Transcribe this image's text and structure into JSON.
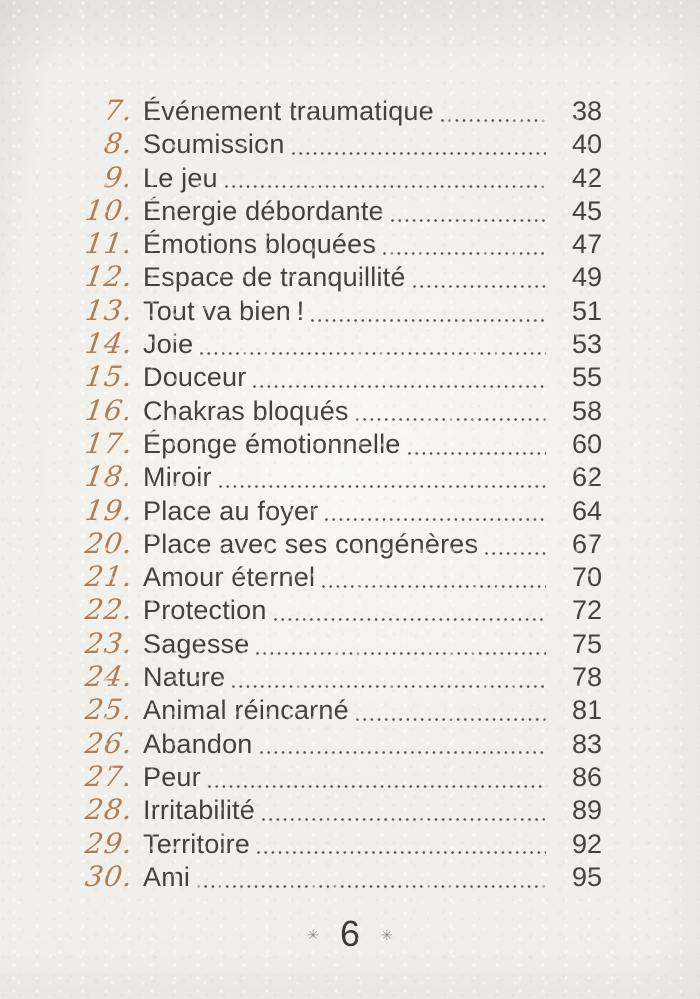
{
  "colors": {
    "paper": "#f1efe9",
    "entry_number_accent": "#ae7e56",
    "entry_text": "#45423e",
    "dot_leader": "#55524e",
    "footer_ornament": "#93908b",
    "footer_page_number": "#3e3b37"
  },
  "toc": {
    "entries": [
      {
        "number": "7.",
        "title": "Événement traumatique",
        "page": "38"
      },
      {
        "number": "8.",
        "title": "Soumission",
        "page": "40"
      },
      {
        "number": "9.",
        "title": "Le jeu",
        "page": "42"
      },
      {
        "number": "10.",
        "title": "Énergie débordante",
        "page": "45"
      },
      {
        "number": "11.",
        "title": "Émotions bloquées",
        "page": "47"
      },
      {
        "number": "12.",
        "title": "Espace de tranquillité",
        "page": "49"
      },
      {
        "number": "13.",
        "title": "Tout va bien !",
        "page": "51"
      },
      {
        "number": "14.",
        "title": "Joie",
        "page": "53"
      },
      {
        "number": "15.",
        "title": "Douceur",
        "page": "55"
      },
      {
        "number": "16.",
        "title": "Chakras bloqués",
        "page": "58"
      },
      {
        "number": "17.",
        "title": "Éponge émotionnelle",
        "page": "60"
      },
      {
        "number": "18.",
        "title": "Miroir",
        "page": "62"
      },
      {
        "number": "19.",
        "title": "Place au foyer",
        "page": "64"
      },
      {
        "number": "20.",
        "title": "Place avec ses congénères",
        "page": "67"
      },
      {
        "number": "21.",
        "title": "Amour éternel",
        "page": "70"
      },
      {
        "number": "22.",
        "title": "Protection",
        "page": "72"
      },
      {
        "number": "23.",
        "title": "Sagesse",
        "page": "75"
      },
      {
        "number": "24.",
        "title": "Nature",
        "page": "78"
      },
      {
        "number": "25.",
        "title": "Animal réincarné",
        "page": "81"
      },
      {
        "number": "26.",
        "title": "Abandon",
        "page": "83"
      },
      {
        "number": "27.",
        "title": "Peur",
        "page": "86"
      },
      {
        "number": "28.",
        "title": "Irritabilité",
        "page": "89"
      },
      {
        "number": "29.",
        "title": "Territoire",
        "page": "92"
      },
      {
        "number": "30.",
        "title": "Ami",
        "page": "95"
      }
    ]
  },
  "footer": {
    "left_ornament": "✳",
    "page_number": "6",
    "right_ornament": "✳"
  }
}
